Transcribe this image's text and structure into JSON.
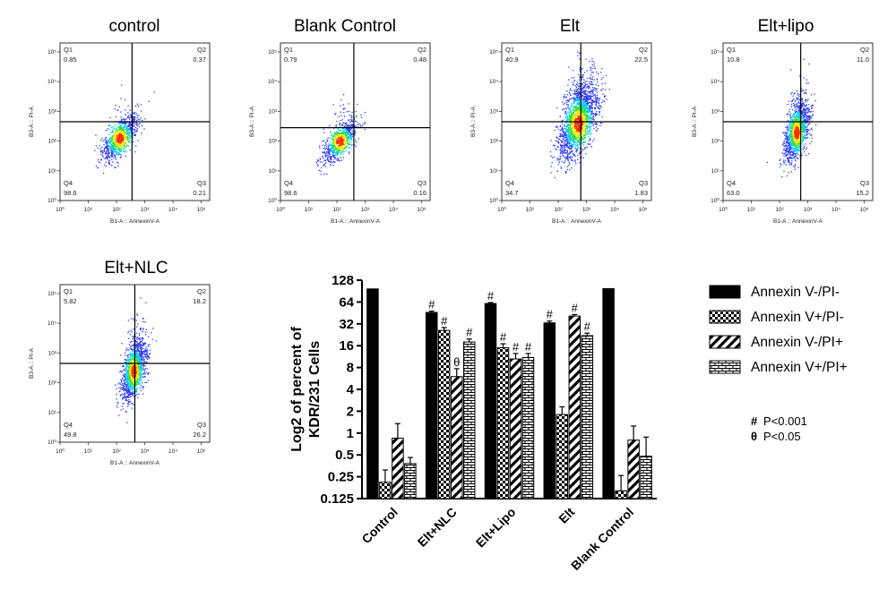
{
  "chart_data": [
    {
      "type": "scatter",
      "title": "control",
      "xlabel": "B1-A :: AnnexinV-A",
      "ylabel": "B3-A :: PI-A",
      "x_ticks": [
        "10⁰",
        "10¹",
        "10²",
        "10³",
        "10⁴",
        "10⁵"
      ],
      "y_ticks": [
        "10⁰",
        "10¹",
        "10²",
        "10³",
        "10⁴",
        "10⁵"
      ],
      "x_log_range": [
        0,
        5.3
      ],
      "y_log_range": [
        0,
        5.3
      ],
      "gate": {
        "x": 2.55,
        "y": 2.65
      },
      "quadrants": {
        "Q1": "0.85",
        "Q2": "0.37",
        "Q3": "0.21",
        "Q4": "98.6"
      },
      "cloud": {
        "cx": 2.1,
        "cy": 2.1,
        "sx": 0.32,
        "sy": 0.38,
        "corr": 0.7,
        "n": 900,
        "tail": 0.05
      },
      "colors": [
        "#2d3cf0",
        "#00c8ff",
        "#2ee046",
        "#f5e400",
        "#ff2a00"
      ]
    },
    {
      "type": "scatter",
      "title": "Blank Control",
      "xlabel": "B1-A :: AnnexinV-A",
      "ylabel": "B3-A :: PI-A",
      "x_ticks": [
        "10⁰",
        "10¹",
        "10²",
        "10³",
        "10⁴",
        "10⁵"
      ],
      "y_ticks": [
        "10⁰",
        "10¹",
        "10²",
        "10³",
        "10⁴",
        "10⁵"
      ],
      "x_log_range": [
        0,
        5.3
      ],
      "y_log_range": [
        0,
        5.3
      ],
      "gate": {
        "x": 2.6,
        "y": 2.45
      },
      "quadrants": {
        "Q1": "0.79",
        "Q2": "0.48",
        "Q3": "0.16",
        "Q4": "98.6"
      },
      "cloud": {
        "cx": 2.1,
        "cy": 2.0,
        "sx": 0.3,
        "sy": 0.36,
        "corr": 0.7,
        "n": 800,
        "tail": 0.04
      },
      "colors": [
        "#2d3cf0",
        "#00c8ff",
        "#2ee046",
        "#f5e400",
        "#ff2a00"
      ]
    },
    {
      "type": "scatter",
      "title": "Elt",
      "xlabel": "B1-A :: AnnexinV-A",
      "ylabel": "B3-A :: PI-A",
      "x_ticks": [
        "10⁰",
        "10¹",
        "10²",
        "10³",
        "10⁴",
        "10⁵"
      ],
      "y_ticks": [
        "10⁰",
        "10¹",
        "10²",
        "10³",
        "10⁴",
        "10⁵"
      ],
      "x_log_range": [
        0,
        5.3
      ],
      "y_log_range": [
        0,
        5.3
      ],
      "gate": {
        "x": 2.8,
        "y": 2.65
      },
      "quadrants": {
        "Q1": "40.9",
        "Q2": "22.5",
        "Q3": "1.83",
        "Q4": "34.7"
      },
      "cloud": {
        "cx": 2.7,
        "cy": 2.6,
        "sx": 0.35,
        "sy": 0.6,
        "corr": 0.6,
        "n": 2200,
        "tail": 0.3
      },
      "colors": [
        "#2d3cf0",
        "#00c8ff",
        "#2ee046",
        "#f5e400",
        "#ff2a00"
      ]
    },
    {
      "type": "scatter",
      "title": "Elt+lipo",
      "xlabel": "B1-A :: AnnexinV-A",
      "ylabel": "B3-A :: PI-A",
      "x_ticks": [
        "10⁰",
        "10¹",
        "10²",
        "10³",
        "10⁴",
        "10⁵"
      ],
      "y_ticks": [
        "10⁰",
        "10¹",
        "10²",
        "10³",
        "10⁴",
        "10⁵"
      ],
      "x_log_range": [
        0,
        5.3
      ],
      "y_log_range": [
        0,
        5.3
      ],
      "gate": {
        "x": 2.75,
        "y": 2.65
      },
      "quadrants": {
        "Q1": "10.8",
        "Q2": "11.0",
        "Q3": "15.2",
        "Q4": "63.0"
      },
      "cloud": {
        "cx": 2.6,
        "cy": 2.3,
        "sx": 0.22,
        "sy": 0.5,
        "corr": 0.55,
        "n": 1300,
        "tail": 0.15
      },
      "colors": [
        "#2d3cf0",
        "#00c8ff",
        "#2ee046",
        "#f5e400",
        "#ff2a00"
      ]
    },
    {
      "type": "scatter",
      "title": "Elt+NLC",
      "xlabel": "B1-A :: AnnexinV-A",
      "ylabel": "B3-A :: PI-A",
      "x_ticks": [
        "10⁰",
        "10¹",
        "10²",
        "10³",
        "10⁴",
        "10⁵"
      ],
      "y_ticks": [
        "10⁰",
        "10¹",
        "10²",
        "10³",
        "10⁴",
        "10⁵"
      ],
      "x_log_range": [
        0,
        5.3
      ],
      "y_log_range": [
        0,
        5.3
      ],
      "gate": {
        "x": 2.65,
        "y": 2.65
      },
      "quadrants": {
        "Q1": "5.82",
        "Q2": "18.2",
        "Q3": "26.2",
        "Q4": "49.8"
      },
      "cloud": {
        "cx": 2.6,
        "cy": 2.4,
        "sx": 0.22,
        "sy": 0.5,
        "corr": 0.55,
        "n": 1300,
        "tail": 0.15
      },
      "colors": [
        "#2d3cf0",
        "#00c8ff",
        "#2ee046",
        "#f5e400",
        "#ff2a00"
      ]
    },
    {
      "type": "bar",
      "title": "",
      "xlabel": "",
      "ylabel": "Log2 of percent of KDR/231 Cells",
      "y_scale": "log2",
      "ylim": [
        0.125,
        128
      ],
      "yticks": [
        "128",
        "64",
        "32",
        "16",
        "8",
        "4",
        "2",
        "1",
        "0.5",
        "0.25",
        "0.125"
      ],
      "categories": [
        "Control",
        "Elt+NLC",
        "Elt+Lipo",
        "Elt",
        "Blank Control"
      ],
      "series": [
        {
          "name": "Annexin V-/PI-",
          "pattern": "solid",
          "values": [
            97,
            46,
            61,
            33,
            98
          ],
          "errors": [
            0,
            2,
            2,
            2,
            0
          ],
          "marks": [
            "",
            "#",
            "#",
            "#",
            ""
          ]
        },
        {
          "name": "Annexin V+/PI-",
          "pattern": "checker",
          "values": [
            0.21,
            26,
            15,
            1.8,
            0.16
          ],
          "errors": [
            0.1,
            2.5,
            2,
            0.5,
            0.1
          ],
          "marks": [
            "",
            "#",
            "#",
            "",
            ""
          ]
        },
        {
          "name": "Annexin V-/PI+",
          "pattern": "diagonal",
          "values": [
            0.85,
            6,
            10.5,
            41,
            0.8
          ],
          "errors": [
            0.5,
            1.7,
            2,
            2,
            0.45
          ],
          "marks": [
            "",
            "θ",
            "#",
            "#",
            ""
          ]
        },
        {
          "name": "Annexin V+/PI+",
          "pattern": "brick",
          "values": [
            0.38,
            18,
            11,
            22,
            0.48
          ],
          "errors": [
            0.08,
            1.8,
            1.5,
            1.8,
            0.4
          ],
          "marks": [
            "",
            "#",
            "#",
            "#",
            ""
          ]
        }
      ],
      "legend_position": "right",
      "notes": [
        {
          "symbol": "#",
          "text": "P<0.001"
        },
        {
          "symbol": "θ",
          "text": "P<0.05"
        }
      ]
    }
  ]
}
